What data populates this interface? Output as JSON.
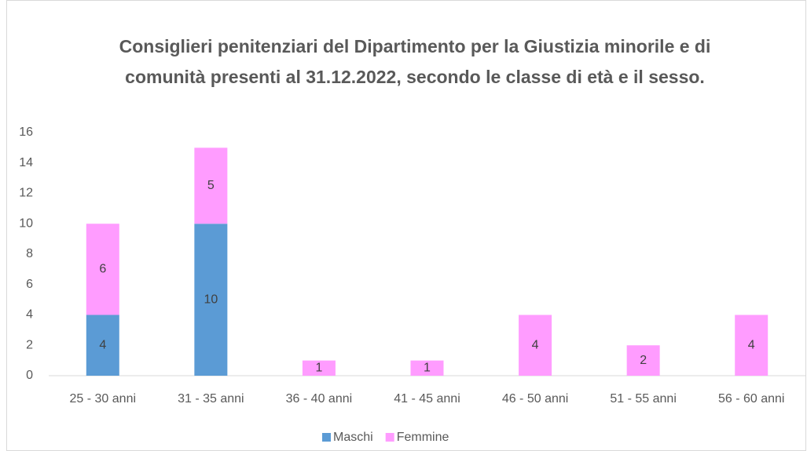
{
  "chart_data": {
    "type": "stacked_bar",
    "title": "Consiglieri penitenziari del Dipartimento per la Giustizia minorile e di comunità presenti al 31.12.2022, secondo le classe di età e il sesso.",
    "categories": [
      "25 - 30 anni",
      "31 - 35 anni",
      "36 - 40 anni",
      "41 - 45 anni",
      "46 - 50 anni",
      "51 - 55 anni",
      "56 - 60 anni"
    ],
    "series": [
      {
        "name": "Maschi",
        "color": "#5b9bd5",
        "values": [
          4,
          10,
          0,
          0,
          0,
          0,
          0
        ]
      },
      {
        "name": "Femmine",
        "color": "#ff9cff",
        "values": [
          6,
          5,
          1,
          1,
          4,
          2,
          4
        ]
      }
    ],
    "ylim": [
      0,
      16
    ],
    "yticks": [
      0,
      2,
      4,
      6,
      8,
      10,
      12,
      14,
      16
    ],
    "grid": false,
    "legend": "bottom"
  }
}
